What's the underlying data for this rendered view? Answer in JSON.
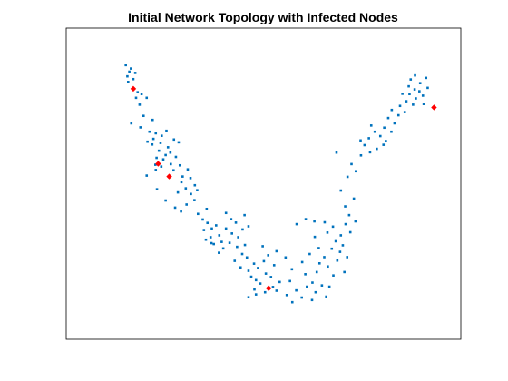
{
  "chart_data": {
    "type": "scatter",
    "title": "Initial Network Topology with Infected Nodes",
    "xlabel": "",
    "ylabel": "",
    "axes_visible": false,
    "grid": false,
    "xlim": [
      0,
      100
    ],
    "ylim": [
      0,
      100
    ],
    "series": [
      {
        "role": "nodes",
        "color": "#0072BD",
        "marker": "square",
        "points": [
          [
            15.1,
            88.1
          ],
          [
            16.0,
            86.0
          ],
          [
            15.5,
            84.5
          ],
          [
            16.4,
            87.0
          ],
          [
            17.5,
            85.6
          ],
          [
            15.7,
            82.7
          ],
          [
            17.0,
            83.6
          ],
          [
            18.1,
            79.4
          ],
          [
            17.7,
            77.6
          ],
          [
            19.1,
            78.8
          ],
          [
            18.6,
            75.4
          ],
          [
            20.4,
            77.6
          ],
          [
            18.8,
            68.1
          ],
          [
            16.5,
            69.4
          ],
          [
            21.9,
            70.5
          ],
          [
            19.6,
            71.8
          ],
          [
            21.1,
            66.7
          ],
          [
            22.7,
            66.2
          ],
          [
            24.2,
            65.4
          ],
          [
            22.1,
            64.4
          ],
          [
            25.4,
            67.0
          ],
          [
            23.9,
            63.1
          ],
          [
            27.3,
            64.2
          ],
          [
            25.8,
            61.7
          ],
          [
            23.5,
            60.6
          ],
          [
            26.4,
            60.0
          ],
          [
            22.9,
            58.3
          ],
          [
            24.6,
            57.8
          ],
          [
            27.8,
            58.6
          ],
          [
            21.8,
            62.6
          ],
          [
            20.6,
            63.5
          ],
          [
            28.5,
            63.3
          ],
          [
            26.5,
            56.3
          ],
          [
            25.2,
            59.2
          ],
          [
            24.1,
            55.5
          ],
          [
            22.6,
            56.1
          ],
          [
            27.2,
            54.3
          ],
          [
            28.8,
            55.9
          ],
          [
            29.5,
            52.3
          ],
          [
            30.8,
            54.6
          ],
          [
            29.2,
            50.5
          ],
          [
            31.5,
            51.8
          ],
          [
            30.3,
            48.5
          ],
          [
            32.6,
            49.5
          ],
          [
            31.6,
            46.7
          ],
          [
            33.2,
            47.9
          ],
          [
            32.5,
            44.7
          ],
          [
            28.3,
            47.2
          ],
          [
            30.5,
            43.3
          ],
          [
            29.1,
            41.1
          ],
          [
            33.4,
            40.3
          ],
          [
            35.6,
            41.9
          ],
          [
            34.6,
            38.5
          ],
          [
            35.8,
            37.4
          ],
          [
            36.9,
            35.6
          ],
          [
            34.9,
            35.1
          ],
          [
            38.0,
            36.6
          ],
          [
            36.6,
            32.8
          ],
          [
            38.8,
            33.4
          ],
          [
            37.4,
            30.6
          ],
          [
            39.4,
            31.3
          ],
          [
            35.4,
            32.0
          ],
          [
            40.5,
            35.6
          ],
          [
            41.8,
            38.6
          ],
          [
            40.5,
            40.6
          ],
          [
            43.0,
            37.5
          ],
          [
            42.0,
            34.0
          ],
          [
            43.6,
            32.8
          ],
          [
            39.8,
            29.2
          ],
          [
            36.8,
            30.9
          ],
          [
            44.7,
            35.3
          ],
          [
            45.2,
            39.9
          ],
          [
            41.4,
            31.0
          ],
          [
            38.7,
            27.8
          ],
          [
            44.6,
            27.4
          ],
          [
            42.7,
            25.2
          ],
          [
            44.2,
            23.1
          ],
          [
            45.8,
            26.3
          ],
          [
            46.2,
            22.0
          ],
          [
            47.6,
            24.3
          ],
          [
            46.9,
            20.1
          ],
          [
            48.1,
            19.0
          ],
          [
            47.7,
            16.0
          ],
          [
            49.2,
            17.9
          ],
          [
            50.6,
            21.1
          ],
          [
            48.6,
            22.9
          ],
          [
            50.1,
            25.1
          ],
          [
            51.9,
            20.0
          ],
          [
            52.4,
            16.8
          ],
          [
            50.4,
            15.1
          ],
          [
            46.2,
            13.5
          ],
          [
            48.1,
            14.4
          ],
          [
            53.3,
            15.6
          ],
          [
            52.7,
            23.8
          ],
          [
            51.2,
            27.0
          ],
          [
            54.1,
            18.4
          ],
          [
            49.8,
            29.9
          ],
          [
            45.3,
            30.3
          ],
          [
            43.3,
            29.7
          ],
          [
            53.3,
            28.3
          ],
          [
            46.2,
            36.3
          ],
          [
            55.9,
            14.2
          ],
          [
            56.7,
            18.7
          ],
          [
            57.3,
            11.9
          ],
          [
            58.3,
            15.7
          ],
          [
            59.7,
            13.4
          ],
          [
            61.0,
            16.9
          ],
          [
            60.6,
            20.9
          ],
          [
            62.4,
            18.2
          ],
          [
            63.2,
            15.1
          ],
          [
            64.8,
            17.3
          ],
          [
            63.5,
            21.6
          ],
          [
            62.3,
            12.6
          ],
          [
            65.9,
            13.7
          ],
          [
            66.7,
            16.9
          ],
          [
            67.7,
            20.5
          ],
          [
            66.3,
            23.4
          ],
          [
            68.7,
            25.3
          ],
          [
            65.4,
            26.4
          ],
          [
            64.2,
            24.4
          ],
          [
            67.3,
            29.1
          ],
          [
            69.4,
            28.1
          ],
          [
            68.3,
            31.5
          ],
          [
            70.1,
            30.2
          ],
          [
            66.2,
            34.3
          ],
          [
            69.6,
            33.4
          ],
          [
            71.2,
            26.4
          ],
          [
            70.5,
            21.6
          ],
          [
            59.8,
            24.8
          ],
          [
            57.2,
            22.5
          ],
          [
            55.6,
            26.3
          ],
          [
            61.7,
            27.4
          ],
          [
            63.0,
            32.9
          ],
          [
            64.0,
            29.3
          ],
          [
            58.4,
            37.0
          ],
          [
            60.7,
            38.6
          ],
          [
            62.9,
            37.9
          ],
          [
            65.5,
            37.6
          ],
          [
            67.6,
            36.2
          ],
          [
            70.8,
            37.0
          ],
          [
            72.0,
            34.4
          ],
          [
            73.3,
            37.9
          ],
          [
            71.7,
            39.9
          ],
          [
            70.7,
            42.7
          ],
          [
            72.9,
            45.2
          ],
          [
            69.6,
            47.8
          ],
          [
            71.3,
            52.2
          ],
          [
            72.3,
            56.3
          ],
          [
            73.4,
            54.0
          ],
          [
            74.7,
            59.1
          ],
          [
            75.6,
            62.4
          ],
          [
            77.0,
            60.1
          ],
          [
            76.7,
            64.6
          ],
          [
            78.2,
            66.7
          ],
          [
            79.6,
            65.3
          ],
          [
            78.7,
            61.2
          ],
          [
            80.6,
            68.0
          ],
          [
            81.0,
            63.7
          ],
          [
            82.4,
            66.7
          ],
          [
            81.6,
            71.1
          ],
          [
            83.2,
            69.4
          ],
          [
            84.2,
            72.0
          ],
          [
            84.6,
            75.0
          ],
          [
            85.8,
            73.0
          ],
          [
            86.2,
            76.5
          ],
          [
            87.0,
            78.8
          ],
          [
            87.9,
            75.4
          ],
          [
            88.6,
            77.4
          ],
          [
            88.3,
            80.3
          ],
          [
            86.8,
            81.3
          ],
          [
            89.5,
            79.7
          ],
          [
            90.4,
            78.3
          ],
          [
            89.7,
            82.3
          ],
          [
            91.6,
            80.8
          ],
          [
            90.6,
            75.6
          ],
          [
            87.3,
            83.5
          ],
          [
            88.4,
            84.8
          ],
          [
            91.2,
            84.0
          ],
          [
            85.2,
            78.9
          ],
          [
            82.5,
            73.7
          ],
          [
            80.4,
            62.5
          ],
          [
            77.3,
            68.7
          ],
          [
            74.6,
            63.9
          ],
          [
            68.5,
            60.0
          ],
          [
            25.2,
            44.6
          ],
          [
            27.6,
            42.3
          ],
          [
            23.0,
            48.2
          ],
          [
            20.4,
            52.6
          ],
          [
            22.7,
            54.4
          ]
        ]
      },
      {
        "role": "infected",
        "color": "#FF0000",
        "marker": "diamond",
        "points": [
          [
            17.0,
            80.5
          ],
          [
            23.3,
            56.4
          ],
          [
            26.1,
            52.3
          ],
          [
            51.3,
            16.4
          ],
          [
            93.2,
            74.5
          ]
        ]
      }
    ]
  }
}
